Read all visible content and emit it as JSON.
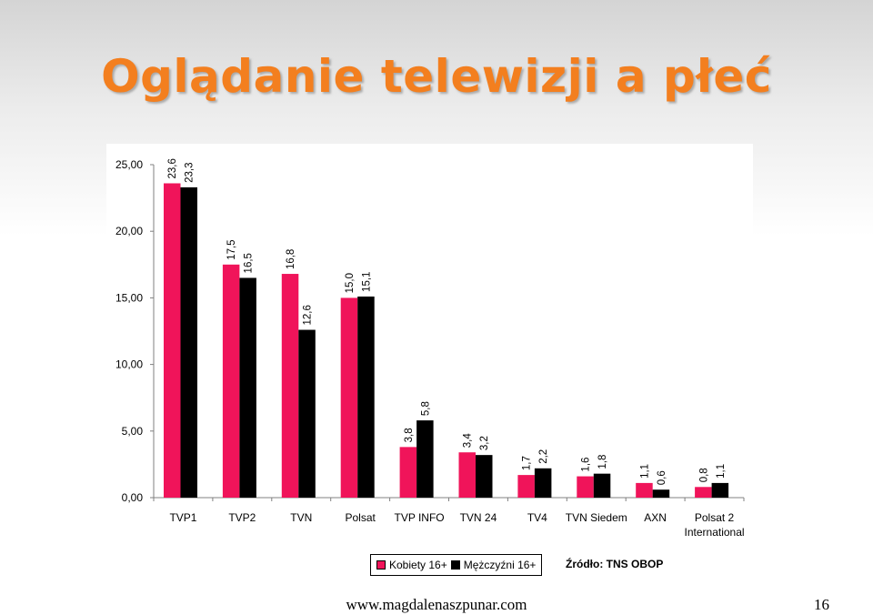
{
  "slide": {
    "title": "Oglądanie telewizji a płeć",
    "source": "Źródło: TNS OBOP",
    "footer_url": "www.magdalenaszpunar.com",
    "page_number": "16"
  },
  "chart_data": {
    "type": "bar",
    "title": "",
    "xlabel": "",
    "ylabel": "",
    "ylim": [
      0,
      25
    ],
    "yticks": [
      "0,00",
      "5,00",
      "10,00",
      "15,00",
      "20,00",
      "25,00"
    ],
    "ytick_values": [
      0,
      5,
      10,
      15,
      20,
      25
    ],
    "grid": false,
    "legend_position": "bottom",
    "categories": [
      [
        "TVP1"
      ],
      [
        "TVP2"
      ],
      [
        "TVN"
      ],
      [
        "Polsat"
      ],
      [
        "TVP INFO"
      ],
      [
        "TVN 24"
      ],
      [
        "TV4"
      ],
      [
        "TVN Siedem"
      ],
      [
        "AXN"
      ],
      [
        "Polsat 2",
        "International"
      ]
    ],
    "series": [
      {
        "name": "Kobiety 16+",
        "color": "#F0145A",
        "values": [
          23.6,
          17.5,
          16.8,
          15.0,
          3.8,
          3.4,
          1.7,
          1.6,
          1.1,
          0.8
        ],
        "labels": [
          "23,6",
          "17,5",
          "16,8",
          "15,0",
          "3,8",
          "3,4",
          "1,7",
          "1,6",
          "1,1",
          "0,8"
        ]
      },
      {
        "name": "Mężczyźni 16+",
        "color": "#000000",
        "values": [
          23.3,
          16.5,
          12.6,
          15.1,
          5.8,
          3.2,
          2.2,
          1.8,
          0.6,
          1.1
        ],
        "labels": [
          "23,3",
          "16,5",
          "12,6",
          "15,1",
          "5,8",
          "3,2",
          "2,2",
          "1,8",
          "0,6",
          "1,1"
        ]
      }
    ]
  }
}
